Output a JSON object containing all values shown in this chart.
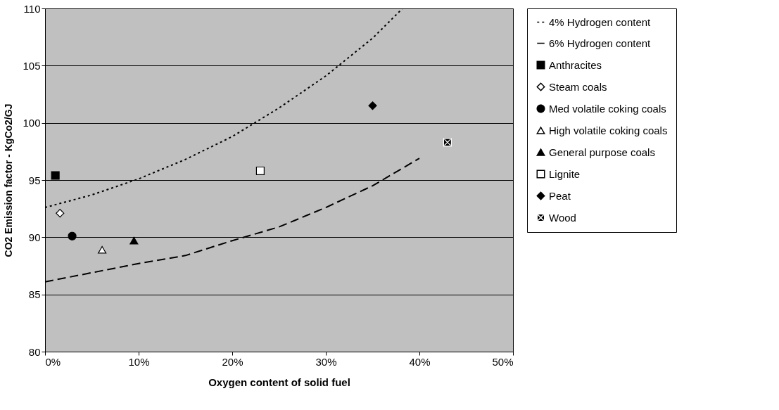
{
  "chart_data": {
    "type": "scatter",
    "xlabel": "Oxygen content of solid fuel",
    "ylabel": "CO2 Emission factor - KgCo2/GJ",
    "xlim": [
      0,
      50
    ],
    "ylim": [
      80,
      110
    ],
    "xticks": [
      {
        "value": 0,
        "label": "0%"
      },
      {
        "value": 10,
        "label": "10%"
      },
      {
        "value": 20,
        "label": "20%"
      },
      {
        "value": 30,
        "label": "30%"
      },
      {
        "value": 40,
        "label": "40%"
      },
      {
        "value": 50,
        "label": "50%"
      }
    ],
    "yticks": [
      80,
      85,
      90,
      95,
      100,
      105,
      110
    ],
    "grid": "y",
    "legend": "right",
    "series": [
      {
        "name": "4% Hydrogen content",
        "type": "line",
        "line_style": "dotted",
        "color": "#000000",
        "x": [
          0,
          5,
          10,
          15,
          20,
          25,
          30,
          35,
          38.2
        ],
        "values": [
          92.6,
          93.7,
          95.1,
          96.8,
          98.8,
          101.3,
          104.1,
          107.4,
          110
        ]
      },
      {
        "name": "6% Hydrogen content",
        "type": "line",
        "line_style": "dashed",
        "color": "#000000",
        "x": [
          0,
          5,
          10,
          15,
          20,
          25,
          30,
          35,
          40
        ],
        "values": [
          86.1,
          86.9,
          87.7,
          88.4,
          89.7,
          90.9,
          92.6,
          94.5,
          96.9
        ]
      },
      {
        "name": "Anthracites",
        "marker": "square",
        "color": "#000000",
        "x": [
          1.1
        ],
        "values": [
          95.4
        ]
      },
      {
        "name": "Steam coals",
        "marker": "diamond",
        "color": "#ffffff",
        "x": [
          1.6
        ],
        "values": [
          92.1
        ]
      },
      {
        "name": "Med volatile coking coals",
        "marker": "circle",
        "color": "#000000",
        "x": [
          2.9
        ],
        "values": [
          90.1
        ]
      },
      {
        "name": "High volatile coking coals",
        "marker": "triangle",
        "color": "#ffffff",
        "x": [
          6.1
        ],
        "values": [
          88.9
        ]
      },
      {
        "name": "General purpose coals",
        "marker": "triangle",
        "color": "#000000",
        "x": [
          9.5
        ],
        "values": [
          89.7
        ]
      },
      {
        "name": "Lignite",
        "marker": "square",
        "color": "#ffffff",
        "x": [
          23.0
        ],
        "values": [
          95.8
        ]
      },
      {
        "name": "Peat",
        "marker": "diamond",
        "color": "#000000",
        "x": [
          35.0
        ],
        "values": [
          101.5
        ]
      },
      {
        "name": "Wood",
        "marker": "cross",
        "color": "#000000",
        "x": [
          43.0
        ],
        "values": [
          98.3
        ]
      }
    ]
  }
}
